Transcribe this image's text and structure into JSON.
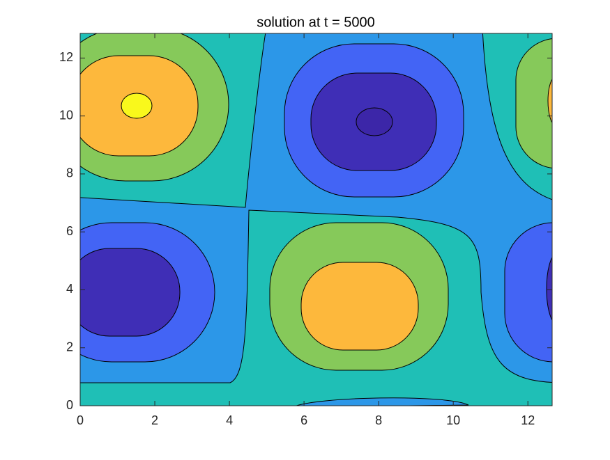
{
  "chart_data": {
    "type": "contour",
    "title": "solution at t = 5000",
    "xlim": [
      0,
      12.65
    ],
    "ylim": [
      0,
      12.85
    ],
    "xticks": [
      0,
      2,
      4,
      6,
      8,
      10,
      12
    ],
    "yticks": [
      0,
      2,
      4,
      6,
      8,
      10,
      12
    ]
  }
}
